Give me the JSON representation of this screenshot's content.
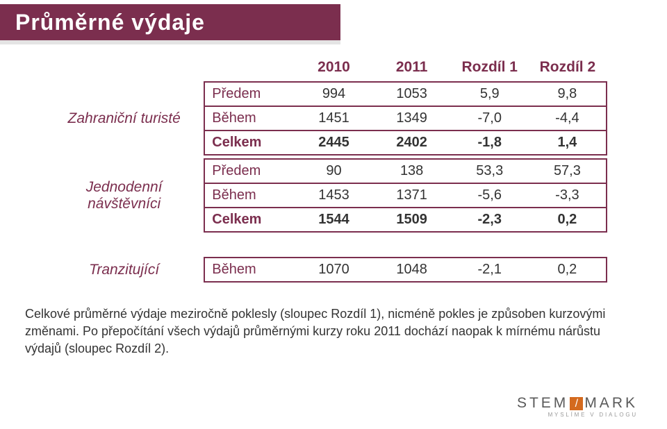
{
  "title": "Průměrné výdaje",
  "columns": [
    "2010",
    "2011",
    "Rozdíl 1",
    "Rozdíl 2"
  ],
  "tables": [
    {
      "label": "Zahraniční turisté",
      "rows": [
        {
          "kind": "Předem",
          "vals": [
            "994",
            "1053",
            "5,9",
            "9,8"
          ],
          "total": false
        },
        {
          "kind": "Během",
          "vals": [
            "1451",
            "1349",
            "-7,0",
            "-4,4"
          ],
          "total": false
        },
        {
          "kind": "Celkem",
          "vals": [
            "2445",
            "2402",
            "-1,8",
            "1,4"
          ],
          "total": true
        }
      ]
    },
    {
      "label": "Jednodenní návštěvníci",
      "rows": [
        {
          "kind": "Předem",
          "vals": [
            "90",
            "138",
            "53,3",
            "57,3"
          ],
          "total": false
        },
        {
          "kind": "Během",
          "vals": [
            "1453",
            "1371",
            "-5,6",
            "-3,3"
          ],
          "total": false
        },
        {
          "kind": "Celkem",
          "vals": [
            "1544",
            "1509",
            "-2,3",
            "0,2"
          ],
          "total": true
        }
      ]
    },
    {
      "label": "Tranzitující",
      "rows": [
        {
          "kind": "Během",
          "vals": [
            "1070",
            "1048",
            "-2,1",
            "0,2"
          ],
          "total": false
        }
      ]
    }
  ],
  "summary": "Celkové průměrné výdaje meziročně poklesly (sloupec Rozdíl 1), nicméně pokles je způsoben kurzovými změnami. Po přepočítání všech výdajů průměrnými kurzy roku 2011 dochází naopak k mírnému nárůstu výdajů (sloupec Rozdíl 2).",
  "logo": {
    "l1a": "STEM",
    "l1b": "MARK",
    "l2": "MYSLÍME V DIALOGU"
  }
}
